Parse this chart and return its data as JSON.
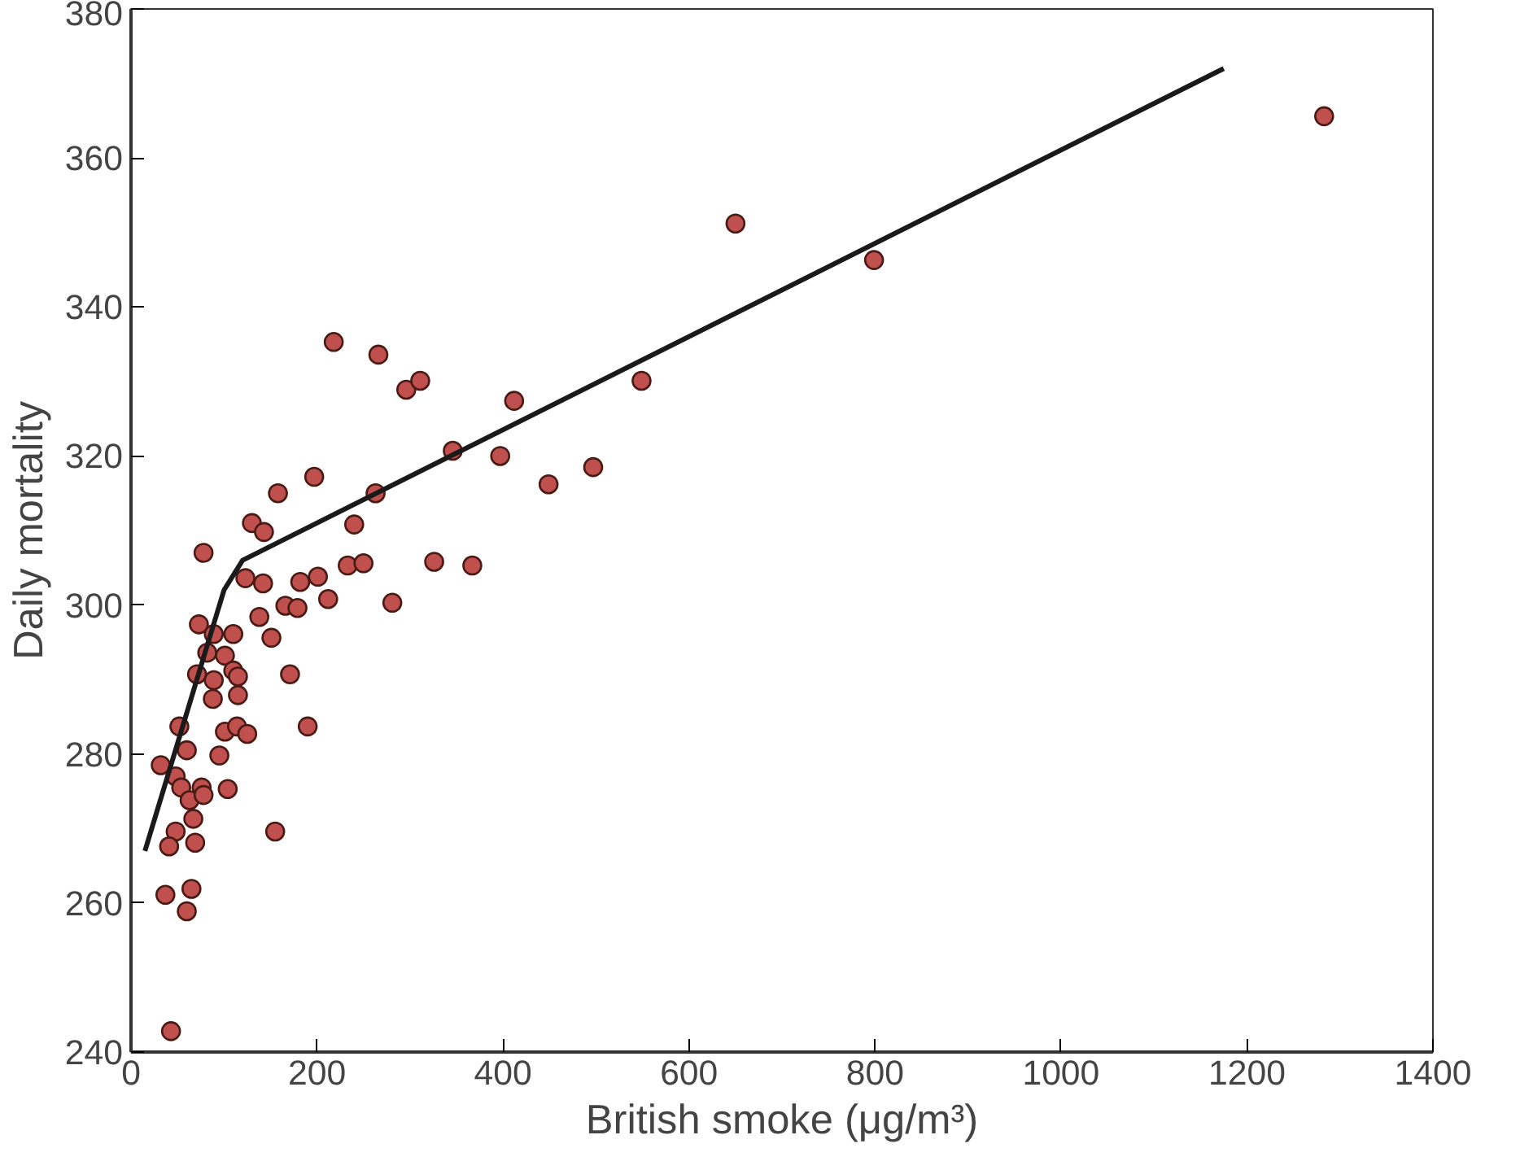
{
  "chart_data": {
    "type": "scatter",
    "xlabel": "British smoke (μg/m³)",
    "ylabel": "Daily mortality",
    "xlim": [
      0,
      1400
    ],
    "ylim": [
      240,
      380
    ],
    "xticks": [
      0,
      200,
      400,
      600,
      800,
      1000,
      1200,
      1400
    ],
    "yticks": [
      240,
      260,
      280,
      300,
      320,
      340,
      360,
      380
    ],
    "grid": false,
    "series": [
      {
        "marker": "circle",
        "color": "#c0504d",
        "x": [
          218,
          266,
          296,
          311,
          412,
          346,
          397,
          449,
          497,
          549,
          650,
          799,
          1283,
          158,
          197,
          263,
          130,
          143,
          240,
          78,
          233,
          250,
          326,
          367,
          123,
          142,
          182,
          201,
          212,
          281,
          166,
          179,
          138,
          151,
          73,
          89,
          110,
          82,
          101,
          110,
          71,
          89,
          115,
          88,
          115,
          171,
          190,
          52,
          101,
          114,
          125,
          95,
          60,
          32,
          48,
          54,
          76,
          104,
          63,
          78,
          67,
          48,
          41,
          69,
          155,
          37,
          65,
          60,
          43
        ],
        "values": [
          335.3,
          333.6,
          328.9,
          330.1,
          327.4,
          320.7,
          320.0,
          316.2,
          318.5,
          330.1,
          351.2,
          346.3,
          365.6,
          315.0,
          317.2,
          315.0,
          311.0,
          309.8,
          310.8,
          307.0,
          305.3,
          305.6,
          305.8,
          305.3,
          303.6,
          302.9,
          303.1,
          303.8,
          300.8,
          300.3,
          299.9,
          299.6,
          298.4,
          295.6,
          297.4,
          296.1,
          296.1,
          293.6,
          293.2,
          291.2,
          290.7,
          289.9,
          290.4,
          287.4,
          287.9,
          290.7,
          283.7,
          283.7,
          283.0,
          283.7,
          282.7,
          279.8,
          280.5,
          278.5,
          277.0,
          275.5,
          275.5,
          275.3,
          273.8,
          274.5,
          271.3,
          269.6,
          267.6,
          268.1,
          269.6,
          261.1,
          261.9,
          258.9,
          242.8
        ]
      },
      {
        "type": "line",
        "color": "#1a1a1a",
        "line_style": "solid",
        "x": [
          15,
          100,
          120,
          1175
        ],
        "values": [
          267,
          302,
          306,
          372
        ]
      }
    ]
  }
}
